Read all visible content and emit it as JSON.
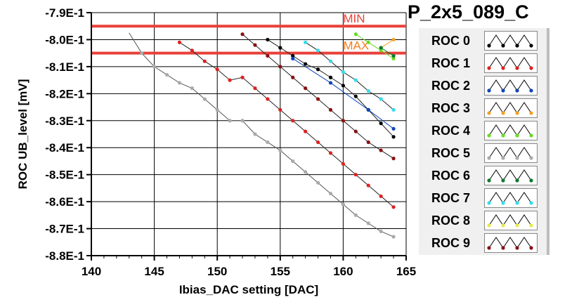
{
  "chart_data": {
    "type": "line",
    "title": "P_2x5_089_C",
    "xlabel": "Ibias_DAC setting [DAC]",
    "ylabel": "ROC UB_level [mV]",
    "xlim": [
      140,
      165
    ],
    "ylim": [
      -0.88,
      -0.79
    ],
    "x_ticks": [
      140,
      145,
      150,
      155,
      160,
      165
    ],
    "x_tick_labels": [
      "140",
      "145",
      "150",
      "155",
      "160",
      "165"
    ],
    "y_ticks": [
      -0.79,
      -0.8,
      -0.81,
      -0.82,
      -0.83,
      -0.84,
      -0.85,
      -0.86,
      -0.87,
      -0.88
    ],
    "y_tick_labels": [
      "-7.9E-1",
      "-8.0E-1",
      "-8.1E-1",
      "-8.2E-1",
      "-8.3E-1",
      "-8.4E-1",
      "-8.5E-1",
      "-8.6E-1",
      "-8.7E-1",
      "-8.8E-1"
    ],
    "grid": true,
    "legend_position": "right",
    "limits": [
      {
        "label": "MIN",
        "y": -0.795,
        "color": "#e8413a",
        "label_color": "#e8413a"
      },
      {
        "label": "MAX",
        "y": -0.805,
        "color": "#e8413a",
        "label_color": "#f27d20"
      }
    ],
    "series": [
      {
        "name": "ROC 0",
        "color": "#000000",
        "x": [
          154,
          155,
          156,
          157,
          158,
          159,
          160,
          161,
          162,
          163,
          164
        ],
        "y": [
          -0.8,
          -0.803,
          -0.806,
          -0.809,
          -0.811,
          -0.814,
          -0.817,
          -0.821,
          -0.826,
          -0.831,
          -0.836
        ]
      },
      {
        "name": "ROC 1",
        "color": "#e02020",
        "x": [
          147,
          148,
          149,
          150,
          151,
          152,
          153,
          154,
          155,
          156,
          157,
          158,
          159,
          160,
          161,
          162,
          163,
          164
        ],
        "y": [
          -0.801,
          -0.804,
          -0.808,
          -0.811,
          -0.815,
          -0.814,
          -0.818,
          -0.822,
          -0.826,
          -0.83,
          -0.834,
          -0.838,
          -0.842,
          -0.846,
          -0.85,
          -0.854,
          -0.858,
          -0.862
        ]
      },
      {
        "name": "ROC 2",
        "color": "#1044b8",
        "x": [
          156,
          159,
          162,
          164
        ],
        "y": [
          -0.807,
          -0.816,
          -0.826,
          -0.833
        ]
      },
      {
        "name": "ROC 3",
        "color": "#f2a020",
        "x": [
          163,
          164
        ],
        "y": [
          -0.803,
          -0.8
        ]
      },
      {
        "name": "ROC 4",
        "color": "#66dd22",
        "x": [
          161,
          162,
          163,
          164
        ],
        "y": [
          -0.798,
          -0.801,
          -0.804,
          -0.807
        ]
      },
      {
        "name": "ROC 5",
        "color": "#aaaaaa",
        "x": [
          143,
          144,
          145,
          146,
          147,
          148,
          149,
          150,
          151,
          152,
          153,
          154,
          155,
          156,
          157,
          158,
          159,
          160,
          161,
          162,
          163,
          164
        ],
        "y": [
          -0.7975,
          -0.805,
          -0.81,
          -0.813,
          -0.816,
          -0.818,
          -0.822,
          -0.826,
          -0.83,
          -0.83,
          -0.835,
          -0.838,
          -0.841,
          -0.845,
          -0.849,
          -0.853,
          -0.857,
          -0.861,
          -0.865,
          -0.868,
          -0.871,
          -0.873
        ]
      },
      {
        "name": "ROC 6",
        "color": "#0d7a2c",
        "x": [
          163,
          164
        ],
        "y": [
          -0.803,
          -0.806
        ]
      },
      {
        "name": "ROC 7",
        "color": "#33ddee",
        "x": [
          157,
          158,
          159,
          160,
          161,
          162,
          163,
          164
        ],
        "y": [
          -0.801,
          -0.804,
          -0.808,
          -0.812,
          -0.815,
          -0.819,
          -0.822,
          -0.826
        ]
      },
      {
        "name": "ROC 8",
        "color": "#e8e84a",
        "x": [],
        "y": []
      },
      {
        "name": "ROC 9",
        "color": "#8b1010",
        "x": [
          152,
          153,
          154,
          155,
          156,
          157,
          158,
          159,
          160,
          161,
          162,
          163,
          164
        ],
        "y": [
          -0.798,
          -0.802,
          -0.806,
          -0.81,
          -0.814,
          -0.818,
          -0.822,
          -0.826,
          -0.83,
          -0.834,
          -0.838,
          -0.841,
          -0.844
        ]
      }
    ]
  }
}
